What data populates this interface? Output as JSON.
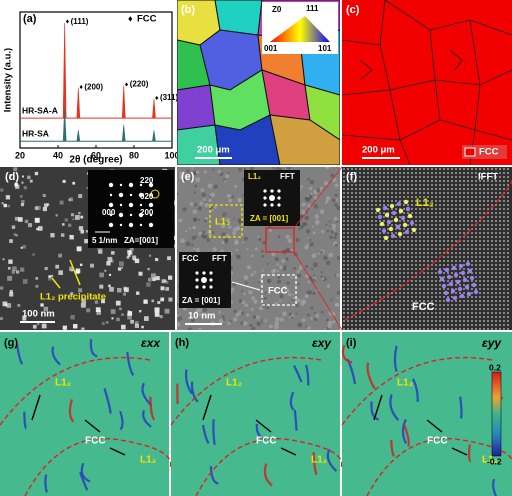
{
  "chart_data": {
    "type": "spectrum",
    "label": "(a)",
    "ylabel": "Intensity (a.u.)",
    "xlabel": "2θ (degree)",
    "xlim": [
      20,
      100
    ],
    "xticks": [
      20,
      40,
      60,
      80,
      100
    ],
    "ylim": [
      0,
      100
    ],
    "legend": {
      "marker": "♦",
      "label": "FCC"
    },
    "x": [
      43.5,
      50.7,
      74.6,
      90.5
    ],
    "peak_labels": [
      "(111)",
      "(200)",
      "(220)",
      "(311)"
    ],
    "series": [
      {
        "name": "HR-SA-A",
        "color": "#e8321e",
        "baseline": 22,
        "values": [
          92,
          44,
          46,
          36
        ]
      },
      {
        "name": "HR-SA",
        "color": "#2f6f73",
        "baseline": 5,
        "values": [
          30,
          13,
          17,
          13
        ]
      }
    ]
  },
  "panels": {
    "b": {
      "label": "(b)",
      "key_title": "Z0",
      "key_111": "111",
      "key_001": "001",
      "key_101": "101",
      "scale": "200 μm"
    },
    "c": {
      "label": "(c)",
      "scale": "200 μm",
      "legend": "FCC"
    },
    "d": {
      "label": "(d)",
      "spots": [
        "220",
        "020",
        "000",
        "200"
      ],
      "inset_scale": "5 1/nm",
      "zone_axis": "ZA=[001]",
      "precipitate": "L1₂ precipitate",
      "scale": "100 nm"
    },
    "e": {
      "label": "(e)",
      "l12_box": "L1₂",
      "l12_fft_phase": "L1₂",
      "l12_fft": "FFT",
      "l12_za": "ZA = [001]",
      "fcc_fft_phase": "FCC",
      "fcc_fft": "FFT",
      "fcc_za": "ZA = [001]",
      "fcc_box": "FCC",
      "scale": "10 nm"
    },
    "f": {
      "label": "(f)",
      "title": "IFFT",
      "l12": "L1₂",
      "fcc": "FCC"
    },
    "g": {
      "label": "(g)",
      "component": "εxx",
      "phases": [
        "L1₂",
        "FCC",
        "L1₂"
      ]
    },
    "h": {
      "label": "(h)",
      "component": "εxy",
      "phases": [
        "L1₂",
        "FCC",
        "L1₂"
      ]
    },
    "i": {
      "label": "(i)",
      "component": "εyy",
      "phases": [
        "L1₂",
        "FCC",
        "L1₂"
      ],
      "colorbar_max": 0.2,
      "colorbar_min": -0.2
    }
  }
}
